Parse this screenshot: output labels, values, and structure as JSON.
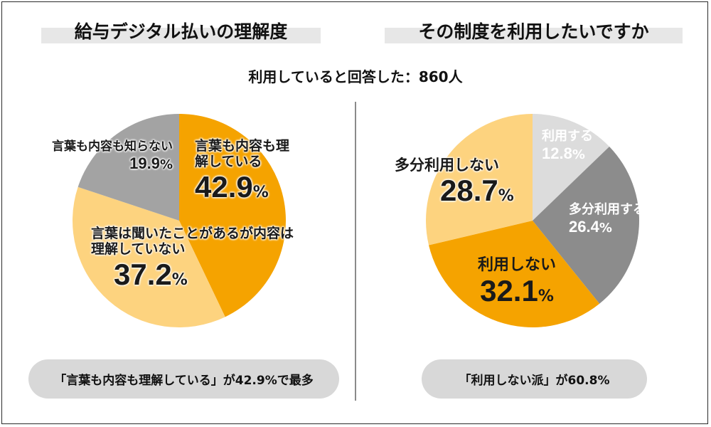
{
  "left_title": "給与デジタル払いの理解度",
  "right_title": "その制度を利用したいですか",
  "subtitle": "利用していると回答した：860人",
  "left_summary": "「言葉も内容も理解している」が42.9%で最多",
  "right_summary": "「利用しない派」が60.8%",
  "colors": {
    "orange": "#f5a300",
    "light_orange": "#fdd37f",
    "gray": "#a3a3a3",
    "dark_gray": "#8c8c8c",
    "light_gray": "#dcdcdc"
  },
  "chart_data": [
    {
      "type": "pie",
      "title": "給与デジタル払いの理解度",
      "slices": [
        {
          "label": "言葉も内容も理解している",
          "value": 42.9,
          "display": "42.9",
          "unit": "%",
          "color": "#f5a300"
        },
        {
          "label": "言葉は聞いたことがあるが内容は理解していない",
          "value": 37.2,
          "display": "37.2",
          "unit": "%",
          "color": "#fdd37f"
        },
        {
          "label": "言葉も内容も知らない",
          "value": 19.9,
          "display": "19.9",
          "unit": "%",
          "color": "#a3a3a3"
        }
      ]
    },
    {
      "type": "pie",
      "title": "その制度を利用したいですか",
      "slices": [
        {
          "label": "利用する",
          "value": 12.8,
          "display": "12.8",
          "unit": "%",
          "color": "#dcdcdc"
        },
        {
          "label": "多分利用する",
          "value": 26.4,
          "display": "26.4",
          "unit": "%",
          "color": "#8c8c8c"
        },
        {
          "label": "利用しない",
          "value": 32.1,
          "display": "32.1",
          "unit": "%",
          "color": "#f5a300"
        },
        {
          "label": "多分利用しない",
          "value": 28.7,
          "display": "28.7",
          "unit": "%",
          "color": "#fdd37f"
        }
      ]
    }
  ]
}
